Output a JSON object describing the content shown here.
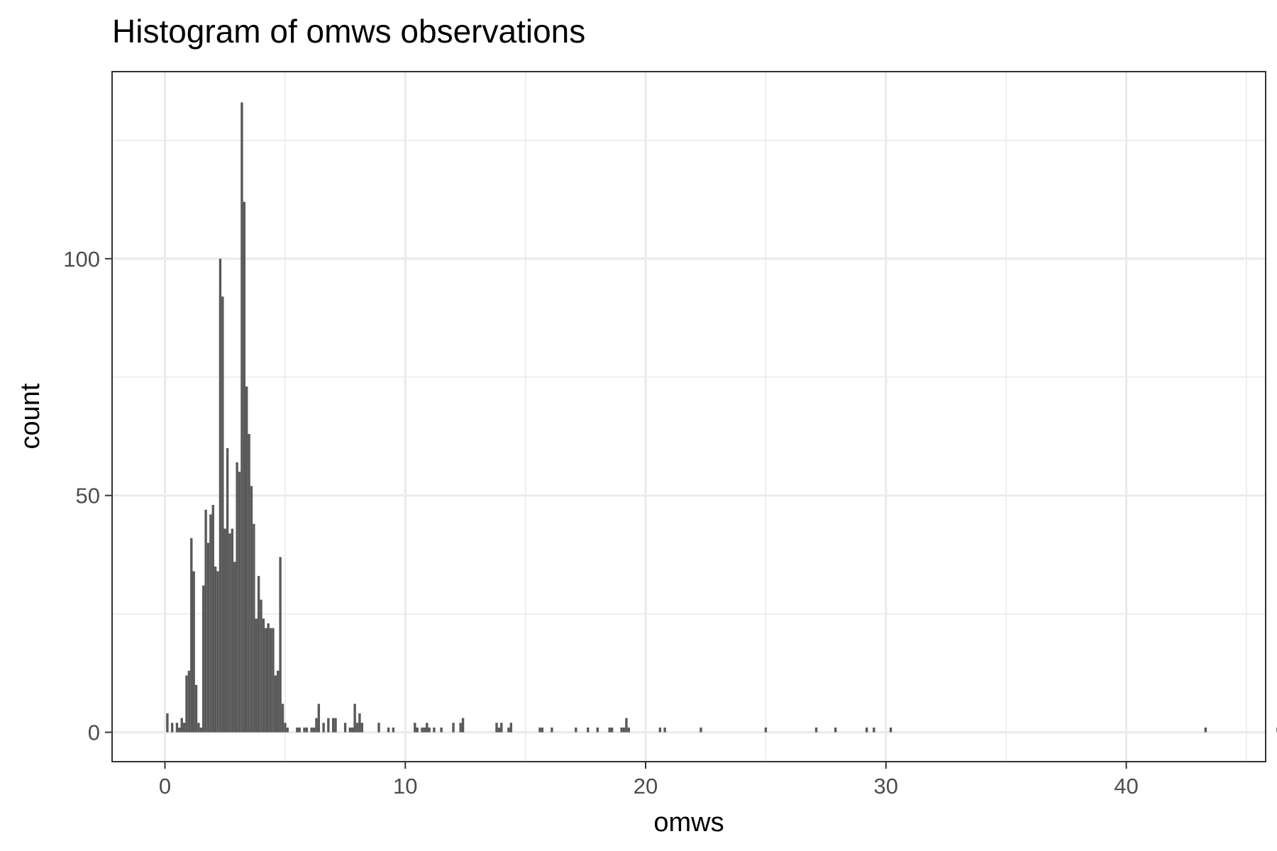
{
  "chart_data": {
    "type": "bar",
    "title": "Histogram of omws observations",
    "xlabel": "omws",
    "ylabel": "count",
    "xlim": [
      -2.2,
      45.8
    ],
    "ylim": [
      -6.2,
      139.5
    ],
    "x_ticks": [
      0,
      10,
      20,
      30,
      40
    ],
    "x_tick_labels": [
      "0",
      "10",
      "20",
      "30",
      "40"
    ],
    "y_ticks": [
      0,
      50,
      100
    ],
    "y_tick_labels": [
      "0",
      "50",
      "100"
    ],
    "grid": true,
    "bin_width": 0.1,
    "bars": [
      {
        "x": 0.1,
        "count": 4
      },
      {
        "x": 0.3,
        "count": 2
      },
      {
        "x": 0.5,
        "count": 2
      },
      {
        "x": 0.6,
        "count": 1
      },
      {
        "x": 0.7,
        "count": 3
      },
      {
        "x": 0.8,
        "count": 2
      },
      {
        "x": 0.9,
        "count": 12
      },
      {
        "x": 1.0,
        "count": 13
      },
      {
        "x": 1.1,
        "count": 41
      },
      {
        "x": 1.2,
        "count": 34
      },
      {
        "x": 1.3,
        "count": 10
      },
      {
        "x": 1.4,
        "count": 2
      },
      {
        "x": 1.5,
        "count": 1
      },
      {
        "x": 1.6,
        "count": 31
      },
      {
        "x": 1.7,
        "count": 47
      },
      {
        "x": 1.8,
        "count": 40
      },
      {
        "x": 1.9,
        "count": 46
      },
      {
        "x": 2.0,
        "count": 48
      },
      {
        "x": 2.1,
        "count": 35
      },
      {
        "x": 2.2,
        "count": 34
      },
      {
        "x": 2.3,
        "count": 100
      },
      {
        "x": 2.4,
        "count": 92
      },
      {
        "x": 2.5,
        "count": 43
      },
      {
        "x": 2.6,
        "count": 60
      },
      {
        "x": 2.7,
        "count": 42
      },
      {
        "x": 2.8,
        "count": 43
      },
      {
        "x": 2.9,
        "count": 36
      },
      {
        "x": 3.0,
        "count": 57
      },
      {
        "x": 3.1,
        "count": 55
      },
      {
        "x": 3.2,
        "count": 133
      },
      {
        "x": 3.3,
        "count": 112
      },
      {
        "x": 3.4,
        "count": 73
      },
      {
        "x": 3.5,
        "count": 63
      },
      {
        "x": 3.6,
        "count": 52
      },
      {
        "x": 3.7,
        "count": 44
      },
      {
        "x": 3.8,
        "count": 24
      },
      {
        "x": 3.9,
        "count": 33
      },
      {
        "x": 4.0,
        "count": 28
      },
      {
        "x": 4.1,
        "count": 24
      },
      {
        "x": 4.2,
        "count": 22
      },
      {
        "x": 4.3,
        "count": 23
      },
      {
        "x": 4.4,
        "count": 22
      },
      {
        "x": 4.5,
        "count": 22
      },
      {
        "x": 4.6,
        "count": 12
      },
      {
        "x": 4.7,
        "count": 13
      },
      {
        "x": 4.8,
        "count": 37
      },
      {
        "x": 4.9,
        "count": 6
      },
      {
        "x": 5.0,
        "count": 2
      },
      {
        "x": 5.1,
        "count": 1
      },
      {
        "x": 5.5,
        "count": 1
      },
      {
        "x": 5.6,
        "count": 1
      },
      {
        "x": 5.8,
        "count": 1
      },
      {
        "x": 5.9,
        "count": 1
      },
      {
        "x": 6.1,
        "count": 1
      },
      {
        "x": 6.2,
        "count": 1
      },
      {
        "x": 6.3,
        "count": 3
      },
      {
        "x": 6.4,
        "count": 6
      },
      {
        "x": 6.6,
        "count": 2
      },
      {
        "x": 6.8,
        "count": 3
      },
      {
        "x": 7.0,
        "count": 3
      },
      {
        "x": 7.1,
        "count": 3
      },
      {
        "x": 7.5,
        "count": 2
      },
      {
        "x": 7.7,
        "count": 1
      },
      {
        "x": 7.8,
        "count": 1
      },
      {
        "x": 7.9,
        "count": 6
      },
      {
        "x": 8.0,
        "count": 2
      },
      {
        "x": 8.1,
        "count": 4
      },
      {
        "x": 8.2,
        "count": 2
      },
      {
        "x": 8.9,
        "count": 2
      },
      {
        "x": 9.3,
        "count": 1
      },
      {
        "x": 9.5,
        "count": 1
      },
      {
        "x": 10.4,
        "count": 2
      },
      {
        "x": 10.5,
        "count": 1
      },
      {
        "x": 10.7,
        "count": 1
      },
      {
        "x": 10.8,
        "count": 1
      },
      {
        "x": 10.9,
        "count": 2
      },
      {
        "x": 11.0,
        "count": 1
      },
      {
        "x": 11.2,
        "count": 1
      },
      {
        "x": 11.5,
        "count": 1
      },
      {
        "x": 12.0,
        "count": 2
      },
      {
        "x": 12.3,
        "count": 2
      },
      {
        "x": 12.4,
        "count": 3
      },
      {
        "x": 13.8,
        "count": 2
      },
      {
        "x": 13.9,
        "count": 1
      },
      {
        "x": 14.0,
        "count": 2
      },
      {
        "x": 14.3,
        "count": 1
      },
      {
        "x": 14.4,
        "count": 2
      },
      {
        "x": 15.6,
        "count": 1
      },
      {
        "x": 15.7,
        "count": 1
      },
      {
        "x": 16.1,
        "count": 1
      },
      {
        "x": 17.1,
        "count": 1
      },
      {
        "x": 17.6,
        "count": 1
      },
      {
        "x": 18.0,
        "count": 1
      },
      {
        "x": 18.5,
        "count": 1
      },
      {
        "x": 18.6,
        "count": 1
      },
      {
        "x": 19.0,
        "count": 1
      },
      {
        "x": 19.1,
        "count": 1
      },
      {
        "x": 19.2,
        "count": 3
      },
      {
        "x": 19.3,
        "count": 1
      },
      {
        "x": 20.6,
        "count": 1
      },
      {
        "x": 20.8,
        "count": 1
      },
      {
        "x": 22.3,
        "count": 1
      },
      {
        "x": 25.0,
        "count": 1
      },
      {
        "x": 27.1,
        "count": 1
      },
      {
        "x": 27.9,
        "count": 1
      },
      {
        "x": 29.2,
        "count": 1
      },
      {
        "x": 29.5,
        "count": 1
      },
      {
        "x": 30.2,
        "count": 1
      },
      {
        "x": 43.3,
        "count": 1
      },
      {
        "x": 46.3,
        "count": 1
      }
    ]
  },
  "colors": {
    "bar_fill": "#595959",
    "grid": "#ebebeb",
    "panel_border": "#333333",
    "tick_text": "#4d4d4d",
    "background": "#ffffff"
  }
}
